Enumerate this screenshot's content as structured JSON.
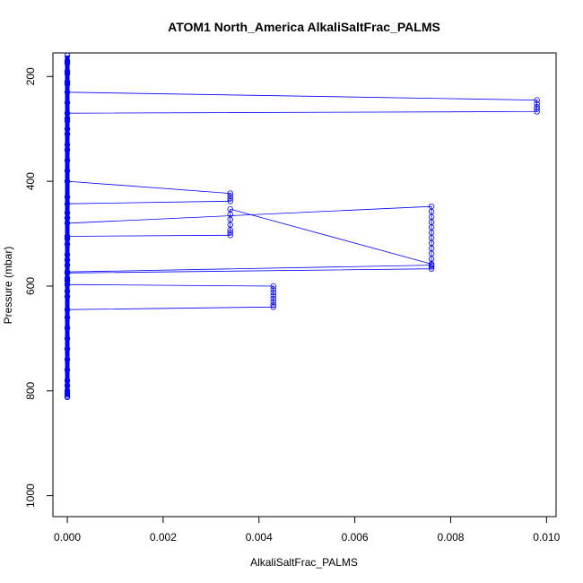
{
  "chart_data": {
    "type": "scatter",
    "title": "ATOM1 North_America AlkaliSaltFrac_PALMS",
    "xlabel": "AlkaliSaltFrac_PALMS",
    "ylabel": "Pressure (mbar)",
    "xlim": [
      -0.0003,
      0.0102
    ],
    "ylim": [
      1040,
      155
    ],
    "y_reversed": true,
    "grid": false,
    "legend": "none",
    "x_ticks": [
      0,
      0.002,
      0.004,
      0.006,
      0.008,
      0.01
    ],
    "x_tick_labels": [
      "0.000",
      "0.002",
      "0.004",
      "0.006",
      "0.008",
      "0.010"
    ],
    "y_ticks": [
      200,
      400,
      600,
      800,
      1000
    ],
    "y_tick_labels": [
      "200",
      "400",
      "600",
      "800",
      "1000"
    ],
    "colors": {
      "series": "#0000ff",
      "axis": "#000000"
    },
    "x": [
      0,
      0,
      0,
      0,
      0,
      0.0098,
      0.0098,
      0.0098,
      0.0098,
      0.0098,
      0,
      0,
      0,
      0,
      0,
      0,
      0.0034,
      0.0034,
      0.0034,
      0.0034,
      0,
      0,
      0,
      0.0076,
      0.0076,
      0.0076,
      0.0076,
      0.0076,
      0.0076,
      0.0076,
      0.0076,
      0.0076,
      0.0076,
      0.0076,
      0.0076,
      0.0034,
      0.0034,
      0.0034,
      0.0034,
      0.0034,
      0.0034,
      0.0034,
      0,
      0,
      0,
      0,
      0,
      0.0076,
      0.0076,
      0.0076,
      0,
      0,
      0,
      0.0043,
      0.0043,
      0.0043,
      0.0043,
      0.0043,
      0.0043,
      0.0043,
      0.0043,
      0,
      0,
      0,
      0,
      0,
      0,
      0,
      0,
      0,
      0,
      0,
      0,
      0,
      0,
      0,
      0,
      0,
      0,
      0,
      0,
      0,
      0,
      0,
      0,
      0,
      0,
      0,
      0
    ],
    "y": [
      160,
      175,
      190,
      210,
      230,
      245,
      252,
      258,
      262,
      267,
      270,
      285,
      300,
      330,
      360,
      400,
      423,
      428,
      433,
      438,
      443,
      460,
      480,
      448,
      458,
      468,
      478,
      488,
      498,
      508,
      518,
      528,
      538,
      548,
      558,
      453,
      463,
      473,
      483,
      493,
      498,
      503,
      505,
      520,
      540,
      560,
      573,
      560,
      563,
      567,
      575,
      585,
      597,
      600,
      606,
      612,
      618,
      624,
      630,
      636,
      640,
      645,
      660,
      680,
      700,
      720,
      740,
      760,
      780,
      790,
      800,
      805,
      810,
      812,
      620,
      610,
      590,
      550,
      510,
      470,
      430,
      380,
      340,
      310,
      280,
      250,
      215,
      195,
      170
    ]
  }
}
